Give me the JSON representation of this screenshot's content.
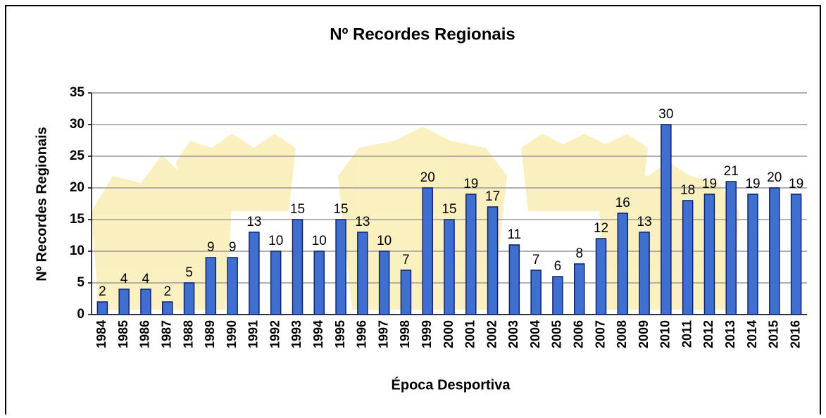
{
  "chart_data": {
    "type": "bar",
    "title": "Nº Recordes Regionais",
    "x_label": "Época Desportiva",
    "y_label": "Nº Recordes Regionais",
    "categories": [
      "1984",
      "1985",
      "1986",
      "1987",
      "1988",
      "1989",
      "1990",
      "1991",
      "1992",
      "1993",
      "1994",
      "1995",
      "1996",
      "1997",
      "1998",
      "1999",
      "2000",
      "2001",
      "2002",
      "2003",
      "2004",
      "2005",
      "2006",
      "2007",
      "2008",
      "2009",
      "2010",
      "2011",
      "2012",
      "2013",
      "2014",
      "2015",
      "2016"
    ],
    "values": [
      2,
      4,
      4,
      2,
      5,
      9,
      9,
      13,
      10,
      15,
      10,
      15,
      13,
      10,
      7,
      20,
      15,
      19,
      17,
      11,
      7,
      6,
      8,
      12,
      16,
      13,
      30,
      18,
      19,
      21,
      19,
      20,
      19
    ],
    "color": "#3f6fd0",
    "ylim": [
      0,
      35
    ],
    "yticks": [
      0,
      5,
      10,
      15,
      20,
      25,
      30,
      35
    ],
    "grid": true
  }
}
